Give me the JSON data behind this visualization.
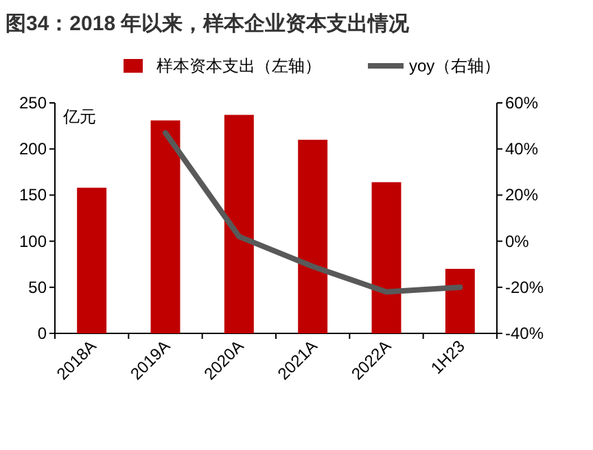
{
  "chart_data": {
    "type": "bar",
    "title": "图34：2018 年以来，样本企业资本支出情况",
    "ylabel": "亿元",
    "categories": [
      "2018A",
      "2019A",
      "2020A",
      "2021A",
      "2022A",
      "1H23"
    ],
    "series": [
      {
        "name": "样本资本支出（左轴）",
        "color": "#c00000",
        "values": [
          158,
          231,
          237,
          210,
          164,
          70
        ]
      },
      {
        "name": "yoy（右轴）",
        "type": "line",
        "axis": "y2",
        "color": "#595959",
        "values": [
          null,
          47,
          2,
          -11,
          -22,
          -20
        ]
      }
    ],
    "ylim": [
      0,
      250
    ],
    "yticks": [
      0,
      50,
      100,
      150,
      200,
      250
    ],
    "y2lim": [
      -40,
      60
    ],
    "y2ticks": [
      {
        "value": -40,
        "label": "-40%"
      },
      {
        "value": -20,
        "label": "-20%"
      },
      {
        "value": 0,
        "label": "0%"
      },
      {
        "value": 20,
        "label": "20%"
      },
      {
        "value": 40,
        "label": "40%"
      },
      {
        "value": 60,
        "label": "60%"
      }
    ],
    "legend": "top",
    "grid": false
  }
}
